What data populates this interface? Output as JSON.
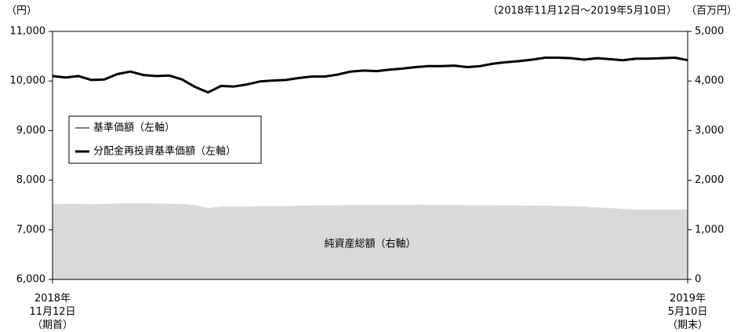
{
  "chart_data": {
    "type": "line",
    "left_unit": "（円）",
    "right_unit": "（百万円）",
    "period": "（2018年11月12日～2019年5月10日）",
    "categories": [
      "2018年\n11月12日\n（期首）",
      null,
      null,
      null,
      null,
      null,
      null,
      null,
      null,
      null,
      null,
      null,
      null,
      null,
      null,
      null,
      null,
      null,
      null,
      null,
      null,
      null,
      null,
      null,
      null,
      null,
      null,
      null,
      null,
      null,
      null,
      null,
      null,
      null,
      null,
      null,
      null,
      null,
      null,
      null,
      null,
      null,
      null,
      null,
      null,
      null,
      null,
      null,
      null,
      "2019年\n5月10日\n（期末）"
    ],
    "series": [
      {
        "name": "純資産総額（右軸）",
        "color": "#d9d9d9",
        "kind": "area",
        "axis": "y2",
        "values": [
          1520,
          1525,
          1525,
          1515,
          1520,
          1530,
          1535,
          1530,
          1530,
          1525,
          1520,
          1500,
          1440,
          1470,
          1470,
          1470,
          1475,
          1480,
          1480,
          1485,
          1490,
          1490,
          1495,
          1500,
          1500,
          1500,
          1500,
          1500,
          1505,
          1505,
          1500,
          1500,
          1495,
          1495,
          1495,
          1490,
          1490,
          1485,
          1490,
          1480,
          1475,
          1470,
          1450,
          1440,
          1420,
          1410,
          1410,
          1410,
          1410,
          1410
        ]
      },
      {
        "name": "基準価額（左軸）",
        "color": "#000000",
        "kind": "line",
        "width": 1,
        "values": [
          10100,
          10070,
          10100,
          10020,
          10030,
          10140,
          10190,
          10120,
          10100,
          10110,
          10030,
          9880,
          9770,
          9900,
          9890,
          9930,
          9990,
          10010,
          10020,
          10060,
          10090,
          10090,
          10130,
          10190,
          10210,
          10200,
          10230,
          10250,
          10280,
          10300,
          10300,
          10310,
          10280,
          10300,
          10350,
          10380,
          10400,
          10430,
          10470,
          10470,
          10460,
          10430,
          10460,
          10440,
          10420,
          10450,
          10450,
          10460,
          10470,
          10420
        ]
      },
      {
        "name": "分配金再投資基準価額（左軸）",
        "color": "#000000",
        "kind": "line",
        "width": 3,
        "values": [
          10100,
          10070,
          10100,
          10020,
          10030,
          10140,
          10190,
          10120,
          10100,
          10110,
          10030,
          9880,
          9770,
          9900,
          9890,
          9930,
          9990,
          10010,
          10020,
          10060,
          10090,
          10090,
          10130,
          10190,
          10210,
          10200,
          10230,
          10250,
          10280,
          10300,
          10300,
          10310,
          10280,
          10300,
          10350,
          10380,
          10400,
          10430,
          10470,
          10470,
          10460,
          10430,
          10460,
          10440,
          10420,
          10450,
          10450,
          10460,
          10470,
          10420
        ]
      }
    ],
    "ylim": [
      6000,
      11000
    ],
    "yticks": [
      {
        "value": 6000,
        "label": "6,000"
      },
      {
        "value": 7000,
        "label": "7,000"
      },
      {
        "value": 8000,
        "label": "8,000"
      },
      {
        "value": 9000,
        "label": "9,000"
      },
      {
        "value": 10000,
        "label": "10,000"
      },
      {
        "value": 11000,
        "label": "11,000"
      }
    ],
    "y2lim": [
      0,
      5000
    ],
    "y2ticks": [
      0,
      {
        "value": 1000,
        "label": "1,000"
      },
      {
        "value": 2000,
        "label": "2,000"
      },
      {
        "value": 3000,
        "label": "3,000"
      },
      {
        "value": 4000,
        "label": "4,000"
      },
      {
        "value": 5000,
        "label": "5,000"
      }
    ],
    "legend": "upper left"
  }
}
